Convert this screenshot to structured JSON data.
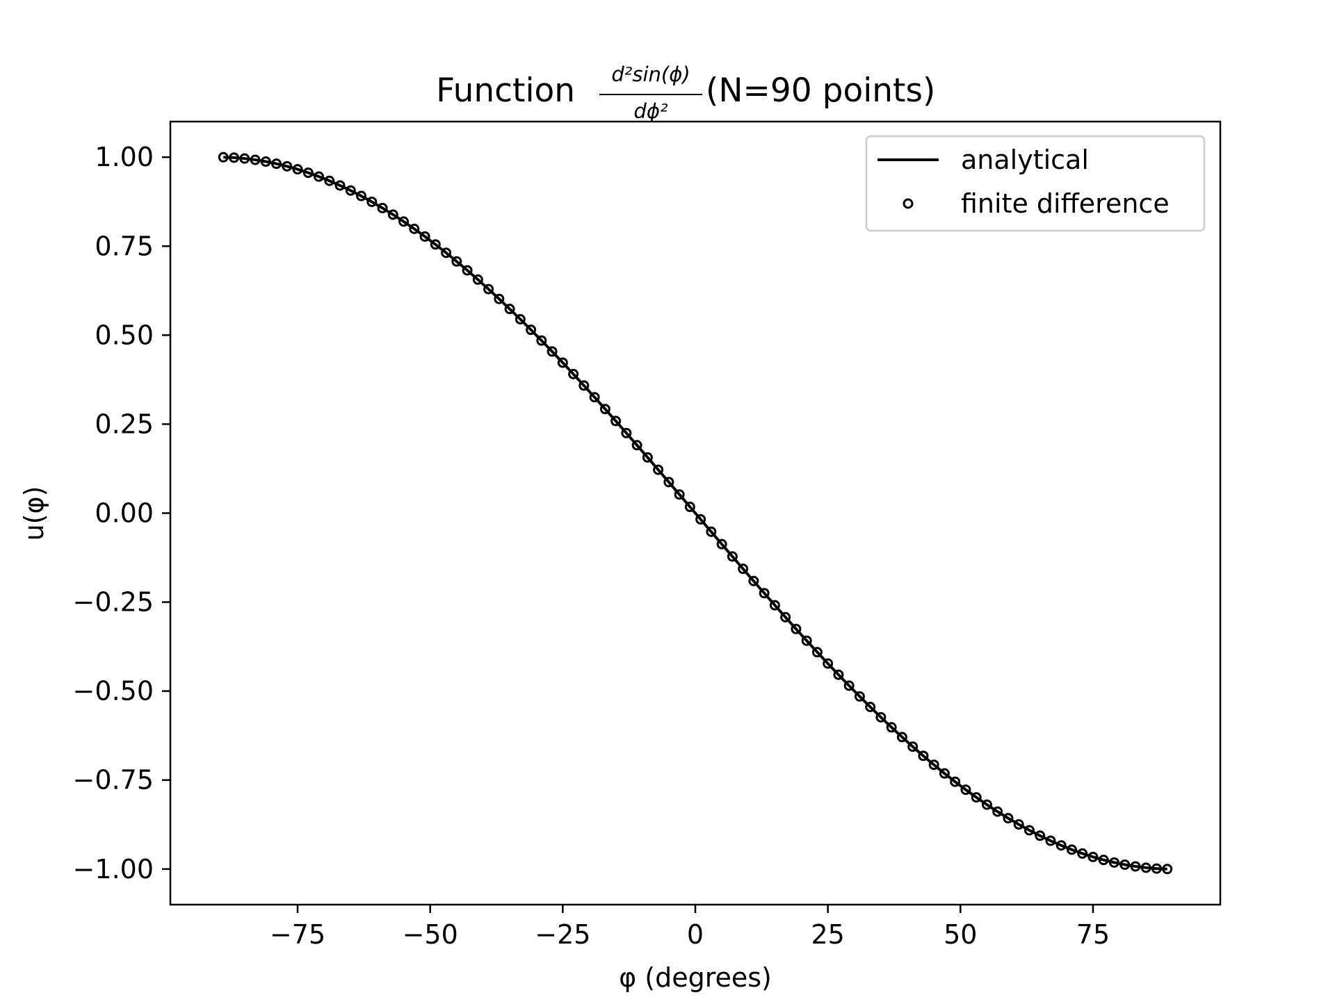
{
  "chart_data": {
    "type": "line",
    "title": {
      "prefix": "Function ",
      "frac_numerator": "d²sin(ϕ)",
      "frac_denominator": "dϕ²",
      "suffix": "(N=90 points)"
    },
    "xlabel": "φ (degrees)",
    "ylabel": "u(φ)",
    "xlim": [
      -99,
      99
    ],
    "ylim": [
      -1.1,
      1.1
    ],
    "xticks": [
      -75,
      -50,
      -25,
      0,
      25,
      50,
      75
    ],
    "xtick_labels": [
      "−75",
      "−50",
      "−25",
      "0",
      "25",
      "50",
      "75"
    ],
    "yticks": [
      1.0,
      0.75,
      0.5,
      0.25,
      0.0,
      -0.25,
      -0.5,
      -0.75,
      -1.0
    ],
    "ytick_labels": [
      "1.00",
      "0.75",
      "0.50",
      "0.25",
      "0.00",
      "−0.25",
      "−0.50",
      "−0.75",
      "−1.00"
    ],
    "grid": false,
    "legend_position": "top-right",
    "function": "u(φ) = −sin(φ)",
    "series": [
      {
        "name": "analytical",
        "style": "solid-line",
        "color": "#000000",
        "x_start": -89,
        "x_end": 89,
        "points": 90
      },
      {
        "name": "finite difference",
        "style": "open-circle-markers",
        "color": "#000000",
        "x_start": -89,
        "x_end": 89,
        "points": 90
      }
    ]
  }
}
